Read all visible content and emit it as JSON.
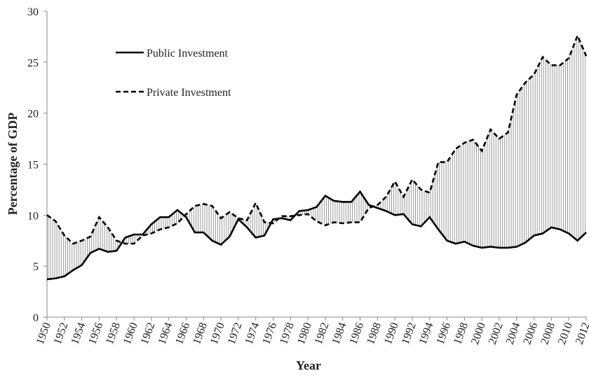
{
  "chart_data": {
    "type": "line",
    "xlabel": "Year",
    "ylabel": "Percentage of GDP",
    "x": [
      1950,
      1951,
      1952,
      1953,
      1954,
      1955,
      1956,
      1957,
      1958,
      1959,
      1960,
      1961,
      1962,
      1963,
      1964,
      1965,
      1966,
      1967,
      1968,
      1969,
      1970,
      1971,
      1972,
      1973,
      1974,
      1975,
      1976,
      1977,
      1978,
      1979,
      1980,
      1981,
      1982,
      1983,
      1984,
      1985,
      1986,
      1987,
      1988,
      1989,
      1990,
      1991,
      1992,
      1993,
      1994,
      1995,
      1996,
      1997,
      1998,
      1999,
      2000,
      2001,
      2002,
      2003,
      2004,
      2005,
      2006,
      2007,
      2008,
      2009,
      2010,
      2011,
      2012
    ],
    "series": [
      {
        "name": "Public Investment",
        "color": "#000000",
        "linestyle": "solid",
        "values": [
          3.7,
          3.8,
          4.0,
          4.6,
          5.1,
          6.3,
          6.7,
          6.4,
          6.5,
          7.8,
          8.1,
          8.1,
          9.1,
          9.8,
          9.8,
          10.5,
          9.8,
          8.3,
          8.3,
          7.5,
          7.1,
          7.9,
          9.6,
          8.8,
          7.8,
          8.0,
          9.6,
          9.7,
          9.5,
          10.4,
          10.5,
          10.8,
          11.9,
          11.4,
          11.3,
          11.3,
          12.3,
          11.0,
          10.7,
          10.4,
          10.0,
          10.1,
          9.1,
          8.9,
          9.8,
          8.6,
          7.5,
          7.2,
          7.4,
          7.0,
          6.8,
          6.9,
          6.8,
          6.8,
          6.9,
          7.3,
          8.0,
          8.2,
          8.8,
          8.6,
          8.2,
          7.5,
          8.3
        ]
      },
      {
        "name": "Private Investment",
        "color": "#000000",
        "linestyle": "dashed",
        "values": [
          10.0,
          9.4,
          8.0,
          7.2,
          7.5,
          7.9,
          9.8,
          8.8,
          7.5,
          7.2,
          7.2,
          8.0,
          8.2,
          8.6,
          8.8,
          9.2,
          10.1,
          10.9,
          11.1,
          10.9,
          9.7,
          10.3,
          9.7,
          9.5,
          11.2,
          9.3,
          9.2,
          9.9,
          9.9,
          10.0,
          10.1,
          9.4,
          9.0,
          9.3,
          9.2,
          9.3,
          9.3,
          10.7,
          11.0,
          11.8,
          13.3,
          11.8,
          13.5,
          12.5,
          12.2,
          15.2,
          15.2,
          16.5,
          17.1,
          17.4,
          16.3,
          18.4,
          17.5,
          18.1,
          21.8,
          23.0,
          23.8,
          25.5,
          24.7,
          24.7,
          25.4,
          27.6,
          25.6
        ]
      }
    ],
    "gap_fill": "vertical-hatch",
    "xlim": [
      1950,
      2012
    ],
    "xticks": [
      1950,
      1952,
      1954,
      1956,
      1958,
      1960,
      1962,
      1964,
      1966,
      1968,
      1970,
      1972,
      1974,
      1976,
      1978,
      1980,
      1982,
      1984,
      1986,
      1988,
      1990,
      1992,
      1994,
      1996,
      1998,
      2000,
      2002,
      2004,
      2006,
      2008,
      2010,
      2012
    ],
    "ylim": [
      0,
      30
    ],
    "yticks": [
      0,
      5,
      10,
      15,
      20,
      25,
      30
    ],
    "grid": false,
    "legend": "upper left"
  }
}
